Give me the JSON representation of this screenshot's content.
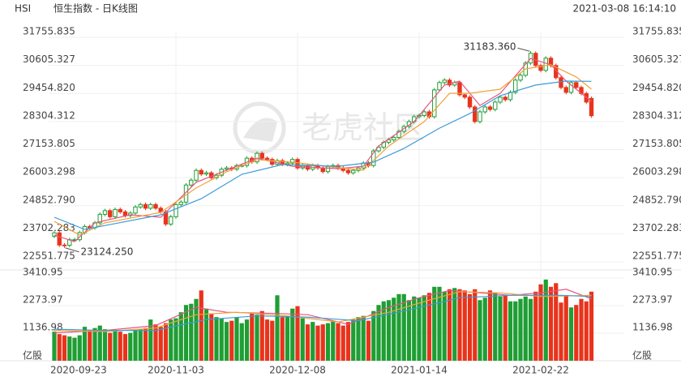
{
  "header": {
    "symbol": "HSI",
    "name": "恒生指数 - 日K线图",
    "timestamp": "2021-03-08 16:14:10"
  },
  "watermark": "老虎社区",
  "chart_data": {
    "type": "candlestick",
    "categories": [
      "2020-09-23",
      null,
      null,
      null,
      null,
      null,
      null,
      null,
      null,
      null,
      null,
      null,
      null,
      null,
      null,
      null,
      null,
      null,
      null,
      null,
      null,
      null,
      null,
      null,
      "2020-11-03",
      null,
      null,
      null,
      null,
      null,
      null,
      null,
      null,
      null,
      null,
      null,
      null,
      null,
      null,
      null,
      null,
      null,
      null,
      null,
      null,
      null,
      null,
      null,
      "2020-12-08",
      null,
      null,
      null,
      null,
      null,
      null,
      null,
      null,
      null,
      null,
      null,
      null,
      null,
      null,
      null,
      null,
      null,
      null,
      null,
      null,
      null,
      null,
      null,
      "2021-01-14",
      null,
      null,
      null,
      null,
      null,
      null,
      null,
      null,
      null,
      null,
      null,
      null,
      null,
      null,
      null,
      null,
      null,
      null,
      null,
      null,
      null,
      null,
      null,
      "2021-02-22",
      null,
      null,
      null,
      null,
      null,
      null,
      null,
      null,
      null,
      null
    ],
    "open": [
      23600,
      23740,
      23240,
      23230,
      23460,
      23460,
      23750,
      24000,
      23950,
      24150,
      24500,
      24650,
      24400,
      24700,
      24600,
      24450,
      24550,
      24800,
      24900,
      24750,
      24900,
      24750,
      24600,
      24100,
      24400,
      24900,
      25000,
      25700,
      25900,
      26300,
      26150,
      26200,
      26000,
      26100,
      26350,
      26400,
      26350,
      26500,
      26500,
      26800,
      26650,
      27000,
      26800,
      26750,
      26550,
      26700,
      26550,
      26600,
      26750,
      26400,
      26500,
      26350,
      26500,
      26400,
      26250,
      26450,
      26500,
      26400,
      26300,
      26200,
      26300,
      26400,
      26600,
      26500,
      27100,
      27250,
      27450,
      27550,
      27650,
      27900,
      28100,
      28300,
      28500,
      28550,
      28700,
      28500,
      29600,
      29900,
      30000,
      29800,
      29900,
      29400,
      29300,
      28900,
      28300,
      28700,
      28900,
      28800,
      29100,
      29300,
      29200,
      29500,
      30000,
      30200,
      30700,
      31100,
      30600,
      30400,
      30900,
      30600,
      30100,
      29700,
      29500,
      29900,
      29700,
      29450,
      29250
    ],
    "high": [
      23820,
      23820,
      23320,
      23540,
      23540,
      23830,
      24080,
      24080,
      24230,
      24580,
      24730,
      24730,
      24780,
      24780,
      24680,
      24630,
      24880,
      24980,
      24980,
      24980,
      24980,
      24830,
      24680,
      24480,
      24980,
      25080,
      25780,
      25980,
      26380,
      26380,
      26280,
      26280,
      26180,
      26430,
      26480,
      26480,
      26580,
      26580,
      26880,
      26880,
      27080,
      27080,
      26880,
      26830,
      26780,
      26780,
      26680,
      26830,
      26830,
      26580,
      26580,
      26580,
      26580,
      26480,
      26530,
      26580,
      26580,
      26480,
      26380,
      26380,
      26480,
      26680,
      26680,
      27180,
      27330,
      27530,
      27630,
      27730,
      27980,
      28180,
      28380,
      28580,
      28630,
      28780,
      28780,
      29680,
      29980,
      30080,
      30080,
      29980,
      29980,
      29480,
      29380,
      28980,
      28780,
      28980,
      28980,
      29180,
      29380,
      29380,
      29580,
      30080,
      30280,
      30780,
      31183.36,
      31180,
      30680,
      30980,
      30980,
      30680,
      30180,
      29780,
      29980,
      29980,
      29780,
      29530,
      29330
    ],
    "low": [
      23520,
      23160,
      23124.25,
      23150,
      23380,
      23380,
      23670,
      23870,
      23870,
      24070,
      24420,
      24320,
      24320,
      24520,
      24370,
      24370,
      24470,
      24720,
      24670,
      24670,
      24670,
      24520,
      24020,
      24020,
      24320,
      24820,
      24920,
      25620,
      25820,
      26070,
      26070,
      25920,
      25920,
      26020,
      26270,
      26270,
      26270,
      26420,
      26420,
      26570,
      26570,
      26720,
      26670,
      26470,
      26470,
      26470,
      26470,
      26520,
      26320,
      26320,
      26270,
      26270,
      26320,
      26170,
      26170,
      26370,
      26320,
      26220,
      26120,
      26120,
      26220,
      26320,
      26420,
      26420,
      27020,
      27170,
      27370,
      27470,
      27570,
      27820,
      28020,
      28220,
      28420,
      28470,
      28420,
      28420,
      29520,
      29820,
      29720,
      29720,
      29320,
      29220,
      28820,
      28220,
      28220,
      28620,
      28720,
      28720,
      29020,
      29120,
      29120,
      29420,
      29920,
      30120,
      30620,
      30520,
      30320,
      30320,
      30520,
      30020,
      29620,
      29420,
      29420,
      29620,
      29370,
      29020,
      28460
    ],
    "close": [
      23740,
      23240,
      23230,
      23460,
      23460,
      23750,
      24000,
      23950,
      24150,
      24500,
      24650,
      24400,
      24700,
      24600,
      24450,
      24550,
      24800,
      24900,
      24750,
      24900,
      24750,
      24600,
      24100,
      24400,
      24900,
      25000,
      25700,
      25900,
      26300,
      26150,
      26200,
      26000,
      26100,
      26350,
      26400,
      26350,
      26500,
      26500,
      26800,
      26650,
      27000,
      26800,
      26750,
      26550,
      26700,
      26550,
      26600,
      26750,
      26400,
      26500,
      26350,
      26500,
      26400,
      26250,
      26450,
      26500,
      26400,
      26300,
      26200,
      26300,
      26400,
      26600,
      26500,
      27100,
      27250,
      27450,
      27550,
      27650,
      27900,
      28100,
      28300,
      28500,
      28550,
      28700,
      28500,
      29600,
      29900,
      30000,
      29800,
      29900,
      29400,
      29300,
      28900,
      28300,
      28700,
      28900,
      28800,
      29100,
      29300,
      29200,
      29500,
      30000,
      30200,
      30700,
      31100,
      30600,
      30400,
      30900,
      30600,
      30100,
      29700,
      29500,
      29900,
      29700,
      29450,
      29100,
      28540
    ],
    "ylim": [
      22551.775,
      31755.835
    ],
    "yticks": [
      22551.775,
      23702.283,
      {
        "value": 24852.79,
        "label": "24852.790"
      },
      26003.298,
      27153.805,
      28304.312,
      {
        "value": 29454.82,
        "label": "29454.820"
      },
      30605.327,
      31755.835
    ],
    "grid": true,
    "colors": {
      "up": "#1f9e34",
      "down": "#e8341c"
    },
    "annotations": [
      {
        "label": "31183.360",
        "value": 31183.36
      },
      {
        "label": "23124.250",
        "value": 23124.25
      }
    ],
    "moving_averages": [
      {
        "color": "#e8557f",
        "x": [
          0,
          4,
          8,
          15,
          21,
          28,
          34,
          40,
          47,
          56,
          61,
          64,
          71,
          77,
          80,
          84,
          88,
          94,
          98,
          101,
          106
        ],
        "values": [
          23650,
          23380,
          24150,
          24480,
          24380,
          25810,
          26310,
          26800,
          26470,
          26370,
          26470,
          27300,
          28300,
          29800,
          29960,
          28960,
          29460,
          30890,
          30630,
          29960,
          29130
        ]
      },
      {
        "color": "#f0a23a",
        "x": [
          0,
          5,
          10,
          21,
          28,
          34,
          40,
          47,
          56,
          61,
          66,
          73,
          78,
          82,
          88,
          93,
          98,
          103,
          106
        ],
        "values": [
          24210,
          23650,
          24150,
          24580,
          25580,
          26240,
          26740,
          26640,
          26410,
          26310,
          27300,
          28300,
          29460,
          29460,
          29630,
          30460,
          30630,
          30130,
          29630
        ]
      },
      {
        "color": "#3c9bd6",
        "x": [
          0,
          6,
          21,
          29,
          37,
          45,
          56,
          63,
          69,
          76,
          82,
          88,
          95,
          101,
          106
        ],
        "values": [
          24380,
          23880,
          24480,
          25140,
          26140,
          26540,
          26470,
          26640,
          27200,
          28030,
          28630,
          29360,
          29800,
          29960,
          29950
        ]
      }
    ],
    "volume": {
      "unit": "亿股",
      "ylim": [
        0,
        3410.95
      ],
      "yticks": [
        1136.98,
        2273.97,
        3410.95
      ],
      "values": [
        1200,
        1100,
        1050,
        1000,
        950,
        1050,
        1400,
        1250,
        1350,
        1450,
        1300,
        1150,
        1250,
        1200,
        1100,
        1150,
        1250,
        1300,
        1350,
        1700,
        1500,
        1400,
        1550,
        1700,
        1750,
        2000,
        2300,
        2350,
        2550,
        2900,
        2150,
        1950,
        1800,
        1750,
        1600,
        1650,
        1800,
        1550,
        1700,
        1950,
        1900,
        2050,
        1700,
        1650,
        2700,
        1800,
        1850,
        2150,
        2250,
        1750,
        1500,
        1600,
        1450,
        1500,
        1550,
        1650,
        1550,
        1450,
        1600,
        1700,
        1800,
        1850,
        1650,
        2050,
        2300,
        2450,
        2500,
        2600,
        2750,
        2750,
        2500,
        2650,
        2600,
        2700,
        2800,
        3050,
        3050,
        2850,
        2950,
        3000,
        2950,
        2900,
        2750,
        2950,
        2500,
        2600,
        2900,
        2800,
        2650,
        2700,
        2450,
        2450,
        2550,
        2650,
        2550,
        2850,
        3150,
        3350,
        3050,
        3200,
        2400,
        2700,
        2200,
        2300,
        2550,
        2450,
        2850
      ],
      "moving_averages": [
        {
          "color": "#e8557f",
          "x": [
            0,
            10,
            20,
            28,
            34,
            44,
            50,
            58,
            66,
            72,
            78,
            84,
            90,
            96,
            101,
            106
          ],
          "values": [
            1150,
            1250,
            1450,
            2200,
            2000,
            1950,
            1900,
            1500,
            2200,
            2600,
            2900,
            2800,
            2700,
            2800,
            2950,
            2550
          ]
        },
        {
          "color": "#f0a23a",
          "x": [
            0,
            10,
            20,
            28,
            36,
            46,
            56,
            66,
            74,
            80,
            88,
            96,
            106
          ],
          "values": [
            1250,
            1200,
            1350,
            1900,
            2000,
            1850,
            1600,
            2000,
            2500,
            2850,
            2800,
            2650,
            2700
          ]
        },
        {
          "color": "#3c9bd6",
          "x": [
            0,
            10,
            20,
            30,
            40,
            50,
            60,
            70,
            80,
            90,
            100,
            106
          ],
          "values": [
            1300,
            1250,
            1250,
            1700,
            1850,
            1800,
            1650,
            2100,
            2600,
            2700,
            2700,
            2650
          ]
        }
      ]
    }
  }
}
